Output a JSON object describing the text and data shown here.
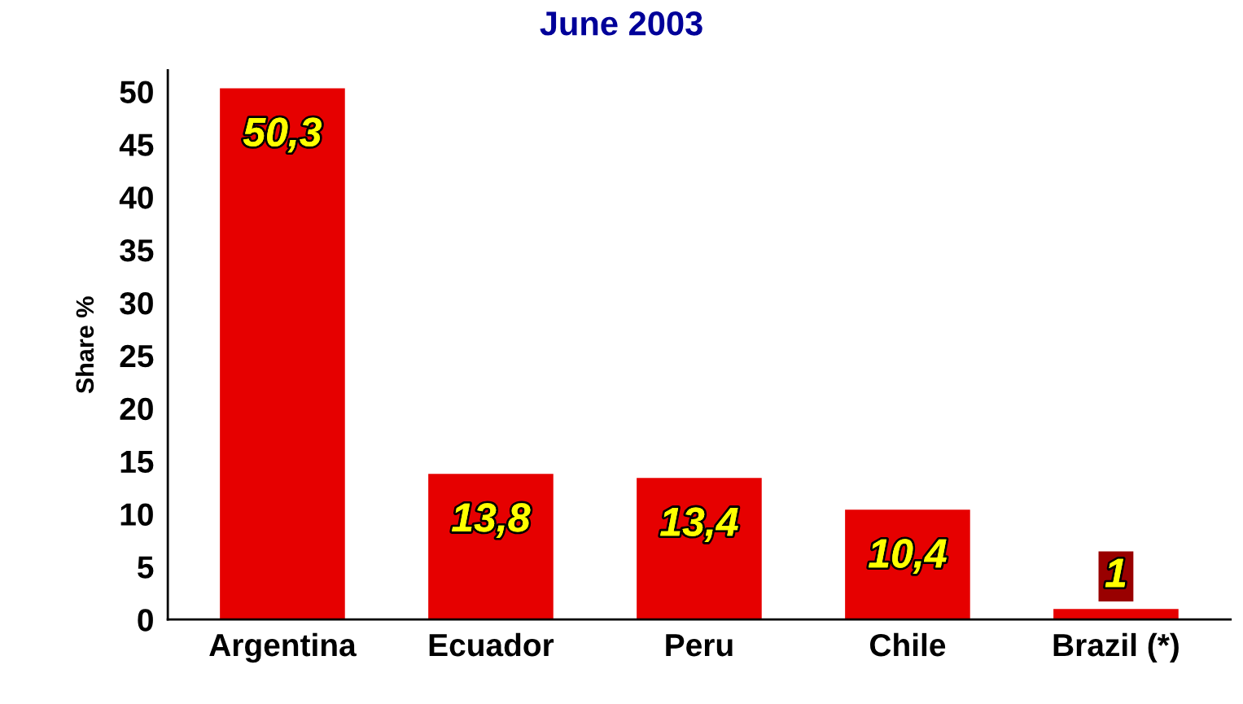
{
  "chart_data": {
    "type": "bar",
    "title": "June 2003",
    "ylabel": "Share %",
    "categories": [
      "Argentina",
      "Ecuador",
      "Peru",
      "Chile",
      "Brazil (*)"
    ],
    "values": [
      50.3,
      13.8,
      13.4,
      10.4,
      1
    ],
    "value_labels": [
      "50,3",
      "13,8",
      "13,4",
      "10,4",
      "1"
    ],
    "color": "#e60000",
    "ylim": [
      0,
      52
    ],
    "yticks": [
      0,
      5,
      10,
      15,
      20,
      25,
      30,
      35,
      40,
      45,
      50
    ]
  }
}
